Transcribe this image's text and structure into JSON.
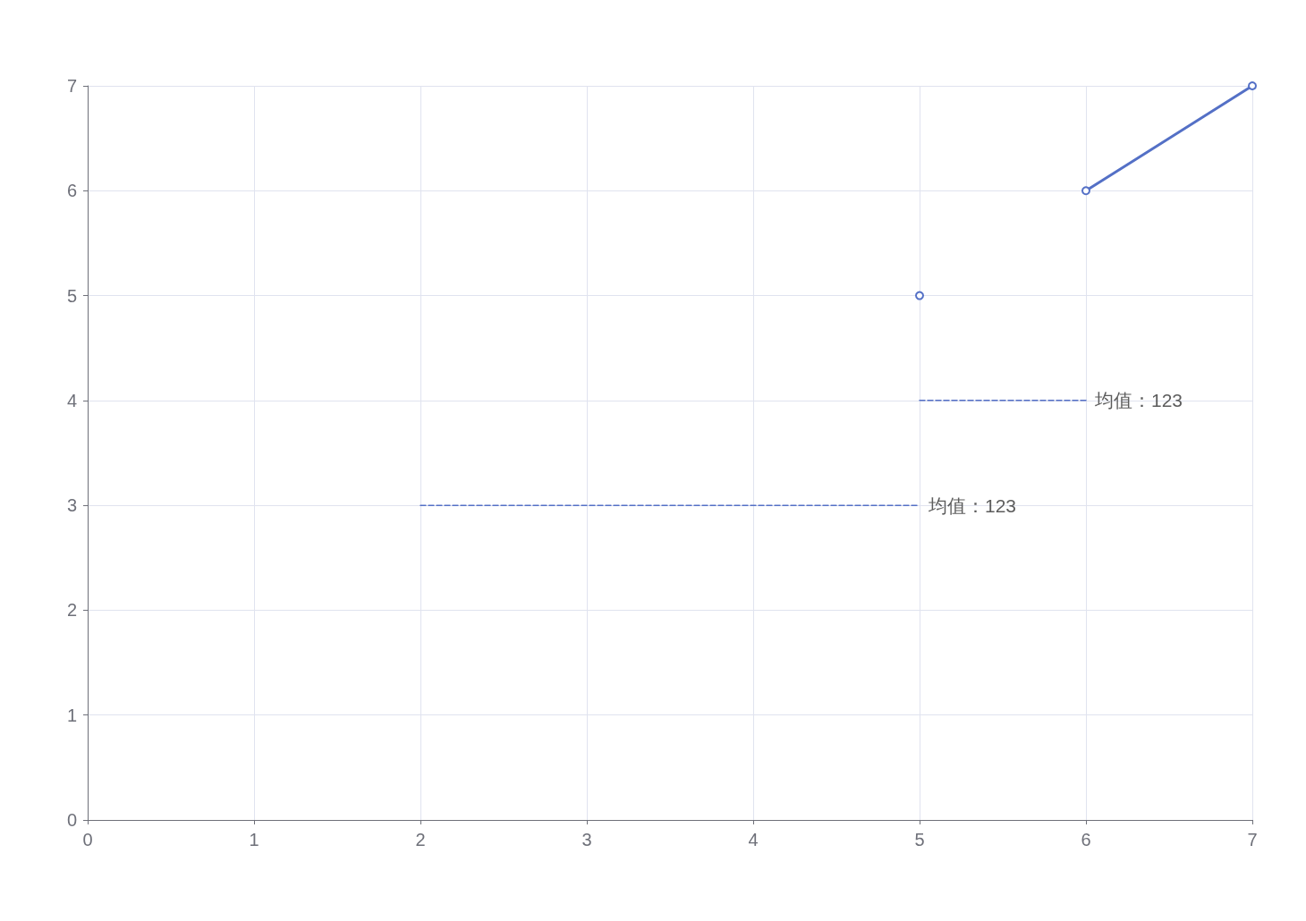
{
  "chart_data": {
    "type": "line",
    "xlim": [
      0,
      7
    ],
    "xticks": [
      0,
      1,
      2,
      3,
      4,
      5,
      6,
      7
    ],
    "ylim": [
      0,
      7
    ],
    "yticks": [
      0,
      1,
      2,
      3,
      4,
      5,
      6,
      7
    ],
    "grid": true,
    "marker": "circle",
    "line_style": "solid",
    "series": [
      {
        "color": "#5470c6",
        "x": [
          5
        ],
        "values": [
          5
        ]
      },
      {
        "color": "#5470c6",
        "x": [
          6,
          7
        ],
        "values": [
          6,
          7
        ]
      },
      {
        "color": "#5470c6",
        "x": [
          2,
          5
        ],
        "values": [
          3,
          3
        ],
        "line_style": "dashed",
        "marker": "none"
      },
      {
        "color": "#5470c6",
        "x": [
          5,
          6
        ],
        "values": [
          4,
          4
        ],
        "line_style": "dashed",
        "marker": "none"
      }
    ],
    "annotations": [
      {
        "text": "均值：123",
        "x": 5,
        "y": 3
      },
      {
        "text": "均值：123",
        "x": 6,
        "y": 4
      }
    ]
  }
}
